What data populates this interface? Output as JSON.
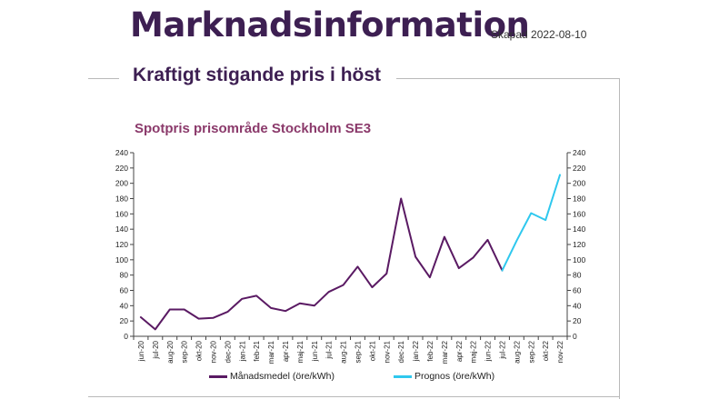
{
  "header": {
    "title": "Marknadsinformation",
    "created": "Skapad 2022-08-10",
    "subtitle": "Kraftigt stigande pris i höst"
  },
  "colors": {
    "title": "#3d1f52",
    "chart_title": "#8b3a6b",
    "series_actual": "#5a1a63",
    "series_forecast": "#2fc8ee",
    "axis": "#444444",
    "rule": "#b9b9b9"
  },
  "chart_data": {
    "type": "line",
    "title": "Spotpris prisområde Stockholm SE3",
    "xlabel": "",
    "ylabel": "",
    "ylim": [
      0,
      240
    ],
    "yticks": [
      0,
      20,
      40,
      60,
      80,
      100,
      120,
      140,
      160,
      180,
      200,
      220,
      240
    ],
    "secondary_y_axis": true,
    "grid": false,
    "legend_position": "bottom",
    "categories": [
      "jun-20",
      "jul-20",
      "aug-20",
      "sep-20",
      "okt-20",
      "nov-20",
      "dec-20",
      "jan-21",
      "feb-21",
      "mar-21",
      "apr-21",
      "maj-21",
      "jun-21",
      "jul-21",
      "aug-21",
      "sep-21",
      "okt-21",
      "nov-21",
      "dec-21",
      "jan-22",
      "feb-22",
      "mar-22",
      "apr-22",
      "maj-22",
      "jun-22",
      "jul-22",
      "aug-22",
      "sep-22",
      "okt-22",
      "nov-22"
    ],
    "series": [
      {
        "name": "Månadsmedel (öre/kWh)",
        "color": "#5a1a63",
        "values": [
          25,
          9,
          35,
          35,
          23,
          24,
          32,
          49,
          53,
          37,
          33,
          43,
          40,
          58,
          67,
          91,
          64,
          82,
          180,
          104,
          77,
          130,
          89,
          103,
          126,
          86,
          null,
          null,
          null,
          null
        ]
      },
      {
        "name": "Prognos (öre/kWh)",
        "color": "#2fc8ee",
        "values": [
          null,
          null,
          null,
          null,
          null,
          null,
          null,
          null,
          null,
          null,
          null,
          null,
          null,
          null,
          null,
          null,
          null,
          null,
          null,
          null,
          null,
          null,
          null,
          null,
          null,
          86,
          125,
          161,
          152,
          211
        ]
      }
    ]
  }
}
